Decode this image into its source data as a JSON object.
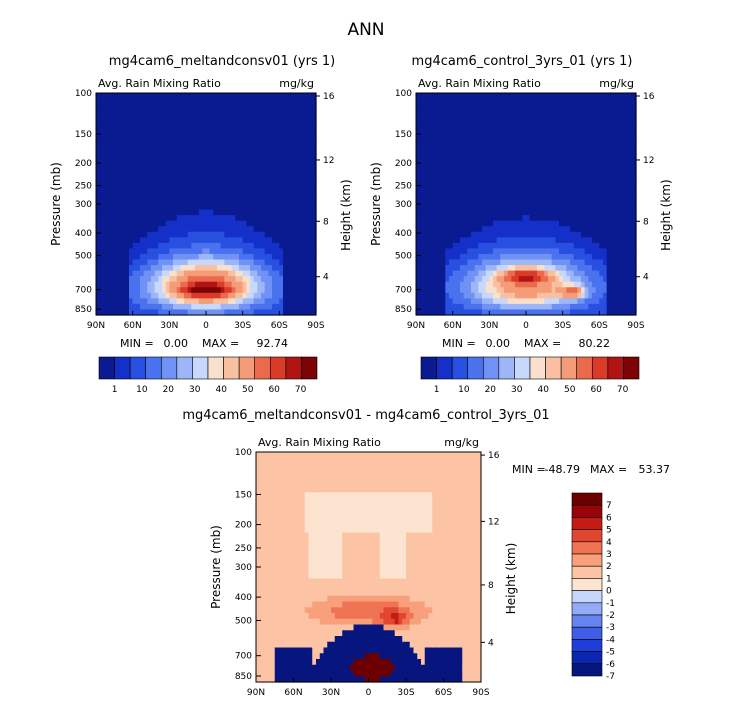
{
  "figure": {
    "title": "ANN"
  },
  "colors": {
    "dark_blue": "#0a1a90",
    "white": "#ffffff",
    "dark_red": "#8b0000"
  },
  "chart_data": [
    {
      "type": "heatmap",
      "title": "mg4cam6_meltandconsv01 (yrs 1)",
      "subtitle": "Avg. Rain Mixing Ratio",
      "units": "mg/kg",
      "ylabel": "Pressure (mb)",
      "y2label": "Height (km)",
      "x_ticks": [
        "90N",
        "60N",
        "30N",
        "0",
        "30S",
        "60S",
        "90S"
      ],
      "y_ticks": [
        "100",
        "150",
        "200",
        "250",
        "300",
        "400",
        "500",
        "700",
        "850"
      ],
      "y2_ticks": [
        "16",
        "12",
        "8",
        "4"
      ],
      "stats": {
        "min_label": "MIN =",
        "min": "0.00",
        "max_label": "MAX =",
        "max": "92.74"
      },
      "colorbar_labels": [
        "1",
        "10",
        "20",
        "30",
        "40",
        "50",
        "60",
        "70"
      ],
      "peak": {
        "lat": 0,
        "pressure_mb": 700,
        "value": 92.74
      }
    },
    {
      "type": "heatmap",
      "title": "mg4cam6_control_3yrs_01 (yrs 1)",
      "subtitle": "Avg. Rain Mixing Ratio",
      "units": "mg/kg",
      "ylabel": "Pressure (mb)",
      "y2label": "Height (km)",
      "x_ticks": [
        "90N",
        "60N",
        "30N",
        "0",
        "30S",
        "60S",
        "90S"
      ],
      "y_ticks": [
        "100",
        "150",
        "200",
        "250",
        "300",
        "400",
        "500",
        "700",
        "850"
      ],
      "y2_ticks": [
        "16",
        "12",
        "8",
        "4"
      ],
      "stats": {
        "min_label": "MIN =",
        "min": "0.00",
        "max_label": "MAX =",
        "max": "80.22"
      },
      "colorbar_labels": [
        "1",
        "10",
        "20",
        "30",
        "40",
        "50",
        "60",
        "70"
      ],
      "peak": {
        "lat": 0,
        "pressure_mb": 620,
        "value": 80.22
      }
    },
    {
      "type": "heatmap",
      "title": "mg4cam6_meltandconsv01 - mg4cam6_control_3yrs_01",
      "subtitle": "Avg. Rain Mixing Ratio",
      "units": "mg/kg",
      "ylabel": "Pressure (mb)",
      "y2label": "Height (km)",
      "x_ticks": [
        "90N",
        "60N",
        "30N",
        "0",
        "30S",
        "60S",
        "90S"
      ],
      "y_ticks": [
        "100",
        "150",
        "200",
        "250",
        "300",
        "400",
        "500",
        "700",
        "850"
      ],
      "y2_ticks": [
        "16",
        "12",
        "8",
        "4"
      ],
      "stats": {
        "min_label": "MIN =",
        "min": "-48.79",
        "max_label": "MAX =",
        "max": "53.37"
      },
      "colorbar_labels": [
        "7",
        "6",
        "5",
        "4",
        "3",
        "2",
        "1",
        "0",
        "-1",
        "-2",
        "-3",
        "-4",
        "-5",
        "-6",
        "-7"
      ]
    }
  ]
}
